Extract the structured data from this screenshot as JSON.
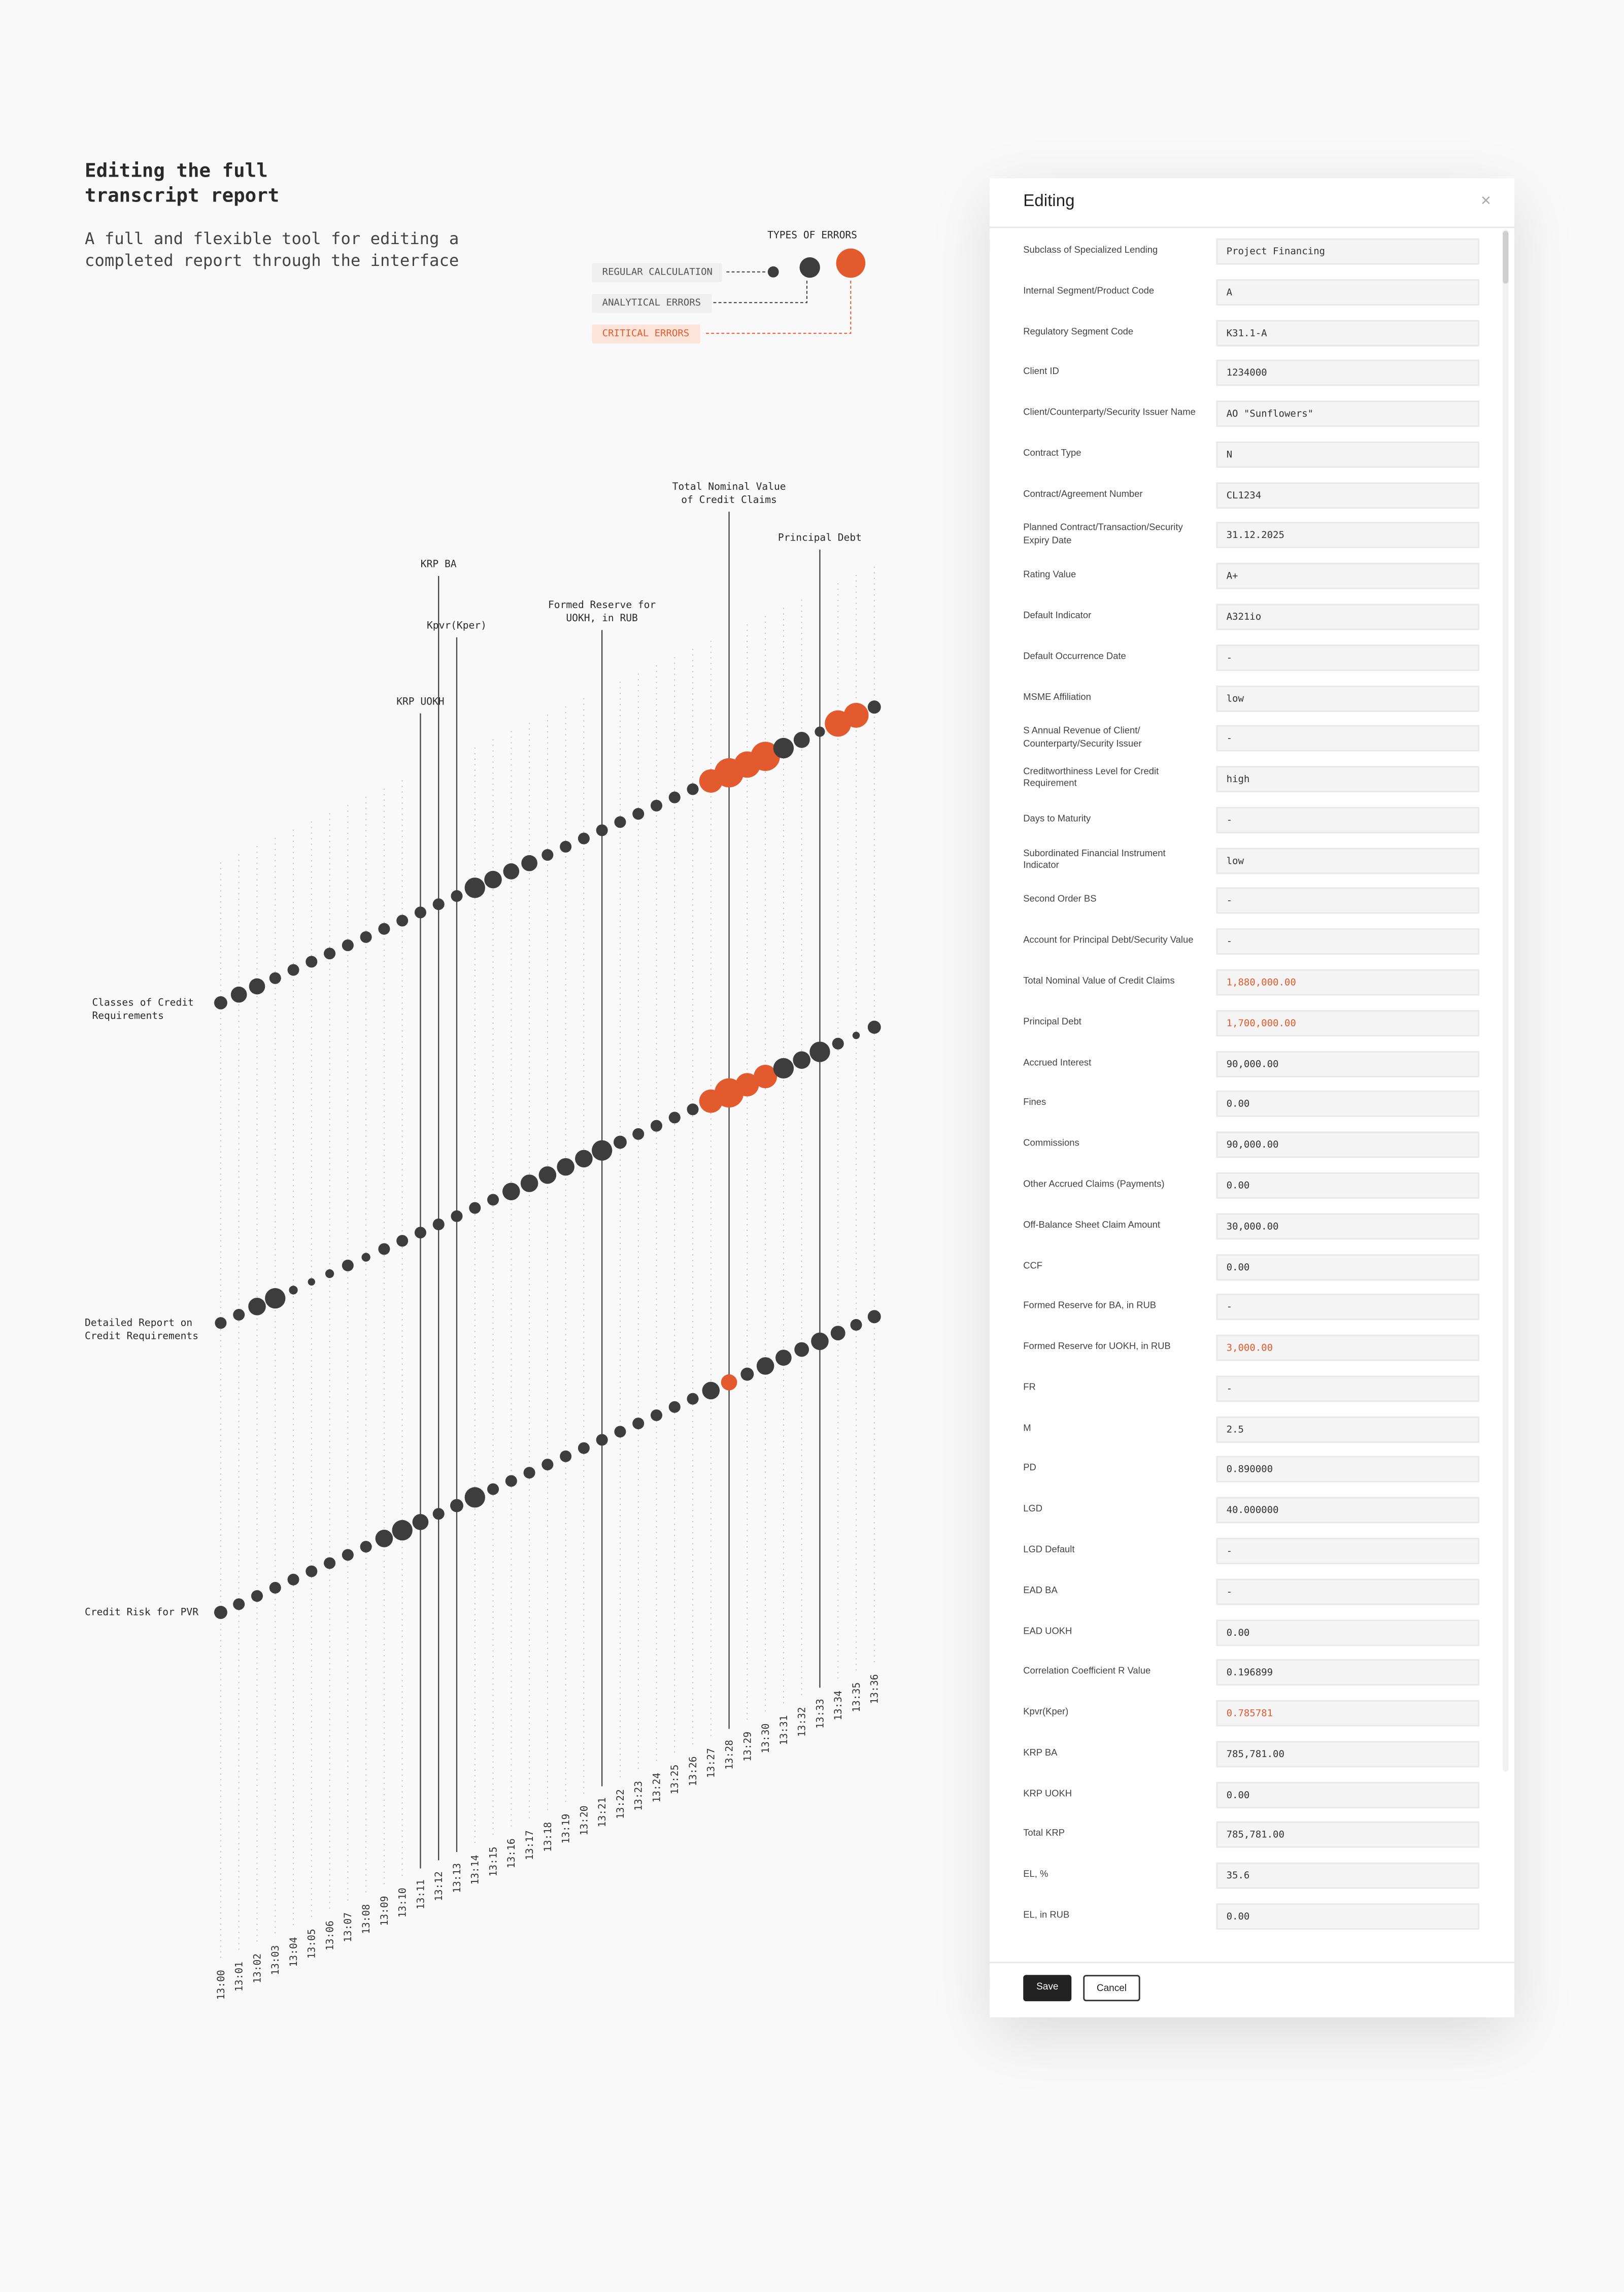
{
  "header": {
    "title": "Editing the full transcript report",
    "subtitle": "A full and flexible tool for editing a completed report through the interface"
  },
  "chart_data": {
    "type": "bubble",
    "categories": [
      "13:00",
      "13:01",
      "13:02",
      "13:03",
      "13:04",
      "13:05",
      "13:06",
      "13:07",
      "13:08",
      "13:09",
      "13:10",
      "13:11",
      "13:12",
      "13:13",
      "13:14",
      "13:15",
      "13:16",
      "13:17",
      "13:18",
      "13:19",
      "13:20",
      "13:21",
      "13:22",
      "13:23",
      "13:24",
      "13:25",
      "13:26",
      "13:27",
      "13:28",
      "13:29",
      "13:30",
      "13:31",
      "13:32",
      "13:33",
      "13:34",
      "13:35",
      "13:36"
    ],
    "colors": {
      "regular": "#3d3d3d",
      "critical": "#e35a2e"
    },
    "series": [
      {
        "name": "Classes of Credit Requirements",
        "values": [
          4.5,
          5.5,
          5.5,
          4,
          4,
          4,
          4,
          4,
          4,
          4,
          4,
          4,
          4,
          4,
          7,
          6,
          5.5,
          5.5,
          4,
          4,
          4,
          4,
          4,
          4,
          4,
          4,
          4,
          8,
          10,
          9,
          10,
          7,
          5.5,
          3.5,
          9,
          8.5,
          4.5
        ],
        "critical": [
          false,
          false,
          false,
          false,
          false,
          false,
          false,
          false,
          false,
          false,
          false,
          false,
          false,
          false,
          false,
          false,
          false,
          false,
          false,
          false,
          false,
          false,
          false,
          false,
          false,
          false,
          false,
          true,
          true,
          true,
          true,
          false,
          false,
          false,
          true,
          true,
          false
        ]
      },
      {
        "name": "Detailed Report on Credit Requirements",
        "values": [
          4,
          4,
          6,
          7,
          3,
          2.5,
          3,
          4,
          3,
          4,
          4,
          4,
          4,
          4,
          4,
          4,
          6,
          6,
          6,
          6,
          6,
          7,
          4.5,
          4,
          4,
          4,
          4,
          8,
          10,
          8,
          8,
          7,
          6,
          7,
          4,
          2.5,
          4.5
        ],
        "critical": [
          false,
          false,
          false,
          false,
          false,
          false,
          false,
          false,
          false,
          false,
          false,
          false,
          false,
          false,
          false,
          false,
          false,
          false,
          false,
          false,
          false,
          false,
          false,
          false,
          false,
          false,
          false,
          true,
          true,
          true,
          true,
          false,
          false,
          false,
          false,
          false,
          false
        ]
      },
      {
        "name": "Credit Risk for PVR",
        "values": [
          4.5,
          4,
          4,
          4,
          4,
          4,
          4,
          4,
          4,
          6,
          7,
          5.5,
          4,
          4.5,
          7,
          4,
          4,
          4,
          4,
          4,
          4,
          4,
          4,
          4,
          4,
          4,
          4,
          6,
          5.5,
          4.5,
          6,
          5.5,
          5,
          6,
          5,
          4,
          4.5
        ],
        "critical": [
          false,
          false,
          false,
          false,
          false,
          false,
          false,
          false,
          false,
          false,
          false,
          false,
          false,
          false,
          false,
          false,
          false,
          false,
          false,
          false,
          false,
          false,
          false,
          false,
          false,
          false,
          false,
          false,
          true,
          false,
          false,
          false,
          false,
          false,
          false,
          false,
          false
        ]
      }
    ],
    "annotations": [
      {
        "label": "KRP UOKH",
        "time": "13:11"
      },
      {
        "label": "KRP BA",
        "time": "13:12"
      },
      {
        "label": "Kpvr(Kper)",
        "time": "13:13"
      },
      {
        "label": "Formed Reserve for UOKH, in RUB",
        "time": "13:21"
      },
      {
        "label": "Total Nominal Value of Credit Claims",
        "time": "13:28"
      },
      {
        "label": "Principal Debt",
        "time": "13:33"
      }
    ],
    "legend": {
      "title": "TYPES OF ERRORS",
      "items": [
        {
          "label": "REGULAR CALCULATION",
          "color": "#3d3d3d"
        },
        {
          "label": "ANALYTICAL ERRORS",
          "color": "#3d3d3d"
        },
        {
          "label": "CRITICAL ERRORS",
          "color": "#e35a2e"
        }
      ]
    }
  },
  "form": {
    "title": "Editing",
    "fields": [
      {
        "label": "Subclass of Specialized Lending",
        "value": "Project Financing",
        "error": false
      },
      {
        "label": "Internal Segment/Product Code",
        "value": "A",
        "error": false
      },
      {
        "label": "Regulatory Segment Code",
        "value": "K31.1-A",
        "error": false
      },
      {
        "label": "Client ID",
        "value": "1234000",
        "error": false
      },
      {
        "label": "Client/Counterparty/Security Issuer Name",
        "value": "AO \"Sunflowers\"",
        "error": false
      },
      {
        "label": "Contract Type",
        "value": "N",
        "error": false
      },
      {
        "label": "Contract/Agreement Number",
        "value": "CL1234",
        "error": false
      },
      {
        "label": "Planned Contract/Transaction/Security Expiry Date",
        "value": "31.12.2025",
        "error": false
      },
      {
        "label": "Rating Value",
        "value": "A+",
        "error": false
      },
      {
        "label": "Default Indicator",
        "value": "A321io",
        "error": false
      },
      {
        "label": "Default Occurrence Date",
        "value": "-",
        "error": false
      },
      {
        "label": "MSME Affiliation",
        "value": "low",
        "error": false
      },
      {
        "label": "S Annual Revenue of Client/ Counterparty/Security Issuer",
        "value": "-",
        "error": false
      },
      {
        "label": "Creditworthiness Level for Credit Requirement",
        "value": "high",
        "error": false
      },
      {
        "label": "Days to Maturity",
        "value": "-",
        "error": false
      },
      {
        "label": "Subordinated Financial Instrument Indicator",
        "value": "low",
        "error": false
      },
      {
        "label": "Second Order BS",
        "value": "-",
        "error": false
      },
      {
        "label": "Account for Principal Debt/Security Value",
        "value": "-",
        "error": false
      },
      {
        "label": "Total Nominal Value of Credit Claims",
        "value": "1,880,000.00",
        "error": true
      },
      {
        "label": "Principal Debt",
        "value": "1,700,000.00",
        "error": true
      },
      {
        "label": "Accrued Interest",
        "value": "90,000.00",
        "error": false
      },
      {
        "label": "Fines",
        "value": "0.00",
        "error": false
      },
      {
        "label": "Commissions",
        "value": "90,000.00",
        "error": false
      },
      {
        "label": "Other Accrued Claims (Payments)",
        "value": "0.00",
        "error": false
      },
      {
        "label": "Off-Balance Sheet Claim Amount",
        "value": "30,000.00",
        "error": false
      },
      {
        "label": "CCF",
        "value": "0.00",
        "error": false
      },
      {
        "label": "Formed Reserve for BA, in RUB",
        "value": "-",
        "error": false
      },
      {
        "label": "Formed Reserve for UOKH, in RUB",
        "value": "3,000.00",
        "error": true
      },
      {
        "label": "FR",
        "value": "-",
        "error": false
      },
      {
        "label": "M",
        "value": "2.5",
        "error": false
      },
      {
        "label": "PD",
        "value": "0.890000",
        "error": false
      },
      {
        "label": "LGD",
        "value": "40.000000",
        "error": false
      },
      {
        "label": "LGD Default",
        "value": "-",
        "error": false
      },
      {
        "label": "EAD BA",
        "value": "-",
        "error": false
      },
      {
        "label": "EAD UOKH",
        "value": "0.00",
        "error": false
      },
      {
        "label": "Correlation Coefficient R Value",
        "value": "0.196899",
        "error": false
      },
      {
        "label": "Kpvr(Kper)",
        "value": "0.785781",
        "error": true
      },
      {
        "label": "KRP BA",
        "value": "785,781.00",
        "error": false
      },
      {
        "label": "KRP UOKH",
        "value": "0.00",
        "error": false
      },
      {
        "label": "Total KRP",
        "value": "785,781.00",
        "error": false
      },
      {
        "label": "EL, %",
        "value": "35.6",
        "error": false
      },
      {
        "label": "EL, in RUB",
        "value": "0.00",
        "error": false
      }
    ],
    "buttons": {
      "save": "Save",
      "cancel": "Cancel"
    }
  }
}
